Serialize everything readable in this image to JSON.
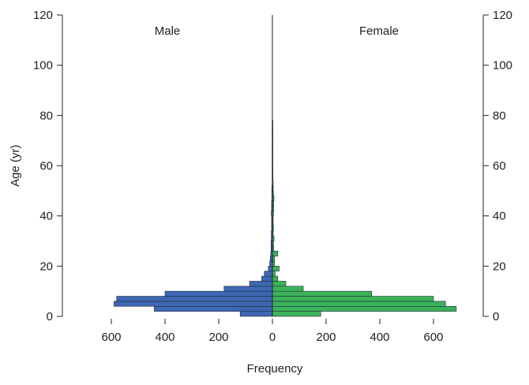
{
  "chart_data": {
    "type": "bar",
    "orientation": "horizontal",
    "subtype": "population-pyramid",
    "xlabel": "Frequency",
    "ylabel": "Age (yr)",
    "ylim": [
      0,
      120
    ],
    "xlim": [
      -780,
      780
    ],
    "x_ticks": [
      -600,
      -400,
      -200,
      0,
      200,
      400,
      600
    ],
    "x_tick_labels": [
      "600",
      "400",
      "200",
      "0",
      "200",
      "400",
      "600"
    ],
    "y_ticks": [
      0,
      20,
      40,
      60,
      80,
      100,
      120
    ],
    "y_tick_labels": [
      "0",
      "20",
      "40",
      "60",
      "80",
      "100",
      "120"
    ],
    "grid": false,
    "bin_width": 2,
    "age_bins": [
      0,
      2,
      4,
      6,
      8,
      10,
      12,
      14,
      16,
      18,
      20,
      22,
      24,
      26,
      28,
      30,
      32,
      34,
      36,
      38,
      40,
      42,
      44,
      46,
      48,
      50,
      52,
      54,
      56,
      58,
      60,
      62,
      64,
      66,
      68,
      70,
      72,
      74,
      76
    ],
    "series": [
      {
        "name": "Male",
        "color": "#3e67b3",
        "values": [
          120,
          440,
          590,
          580,
          400,
          180,
          85,
          40,
          30,
          15,
          10,
          8,
          6,
          5,
          5,
          4,
          4,
          3,
          3,
          3,
          4,
          3,
          3,
          2,
          2,
          2,
          1,
          1,
          1,
          1,
          1,
          1,
          1,
          1,
          1,
          1,
          1,
          1,
          1
        ]
      },
      {
        "name": "Female",
        "color": "#3cb35a",
        "values": [
          180,
          685,
          645,
          600,
          370,
          115,
          50,
          20,
          10,
          25,
          8,
          8,
          20,
          5,
          4,
          6,
          3,
          4,
          3,
          3,
          4,
          5,
          5,
          6,
          4,
          3,
          3,
          2,
          2,
          2,
          1,
          1,
          1,
          1,
          1,
          1,
          1,
          1,
          1
        ]
      }
    ]
  }
}
